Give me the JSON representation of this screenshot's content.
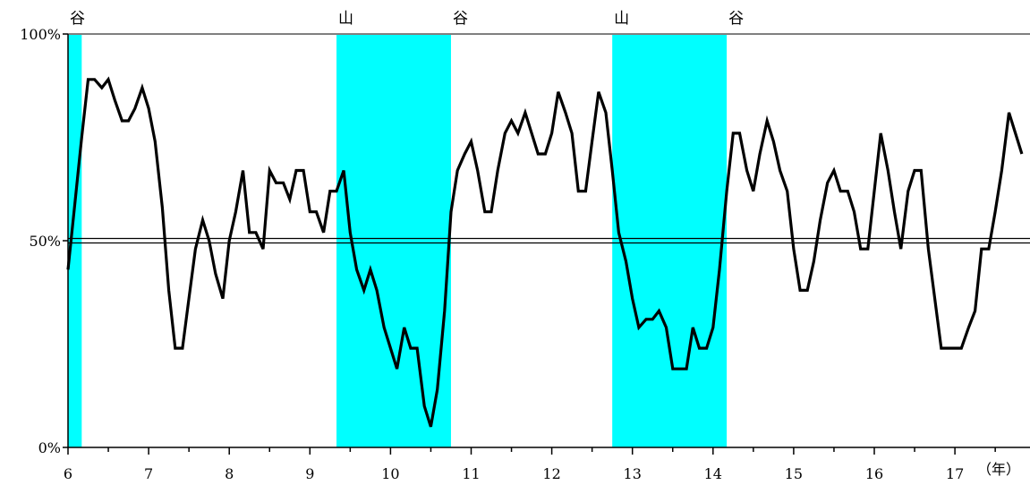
{
  "chart_data": {
    "type": "line",
    "title": "",
    "xlabel": "（年）",
    "ylabel": "",
    "xlim": [
      6,
      18
    ],
    "ylim": [
      0,
      100
    ],
    "yticks": [
      {
        "value": 0,
        "label": "0%"
      },
      {
        "value": 50,
        "label": "50%"
      },
      {
        "value": 100,
        "label": "100%"
      }
    ],
    "xticks": [
      {
        "value": 6,
        "label": "6"
      },
      {
        "value": 7,
        "label": "7"
      },
      {
        "value": 8,
        "label": "8"
      },
      {
        "value": 9,
        "label": "9"
      },
      {
        "value": 10,
        "label": "10"
      },
      {
        "value": 11,
        "label": "11"
      },
      {
        "value": 12,
        "label": "12"
      },
      {
        "value": 13,
        "label": "13"
      },
      {
        "value": 14,
        "label": "14"
      },
      {
        "value": 15,
        "label": "15"
      },
      {
        "value": 16,
        "label": "16"
      },
      {
        "value": 17,
        "label": "17"
      }
    ],
    "reference_line": 50,
    "shaded_periods": [
      {
        "start": 6.0,
        "end": 6.17
      },
      {
        "start": 9.33,
        "end": 10.75
      },
      {
        "start": 12.75,
        "end": 14.17
      }
    ],
    "phase_markers": [
      {
        "x": 6.0,
        "label": "谷"
      },
      {
        "x": 9.33,
        "label": "山"
      },
      {
        "x": 10.75,
        "label": "谷"
      },
      {
        "x": 12.75,
        "label": "山"
      },
      {
        "x": 14.17,
        "label": "谷"
      }
    ],
    "colors": {
      "shading": "#00ffff",
      "line": "#000000",
      "axis": "#000000",
      "top_border": "#808080"
    },
    "series": [
      {
        "values": [
          [
            6.0,
            43
          ],
          [
            6.08,
            58
          ],
          [
            6.17,
            75
          ],
          [
            6.25,
            89
          ],
          [
            6.33,
            89
          ],
          [
            6.42,
            87
          ],
          [
            6.5,
            89
          ],
          [
            6.58,
            84
          ],
          [
            6.67,
            79
          ],
          [
            6.75,
            79
          ],
          [
            6.83,
            82
          ],
          [
            6.92,
            87
          ],
          [
            7.0,
            82
          ],
          [
            7.08,
            74
          ],
          [
            7.17,
            58
          ],
          [
            7.25,
            38
          ],
          [
            7.33,
            24
          ],
          [
            7.42,
            24
          ],
          [
            7.5,
            36
          ],
          [
            7.58,
            48
          ],
          [
            7.67,
            55
          ],
          [
            7.75,
            50
          ],
          [
            7.83,
            42
          ],
          [
            7.92,
            36
          ],
          [
            8.0,
            50
          ],
          [
            8.08,
            57
          ],
          [
            8.17,
            67
          ],
          [
            8.25,
            52
          ],
          [
            8.33,
            52
          ],
          [
            8.42,
            48
          ],
          [
            8.5,
            67
          ],
          [
            8.58,
            64
          ],
          [
            8.67,
            64
          ],
          [
            8.75,
            60
          ],
          [
            8.83,
            67
          ],
          [
            8.92,
            67
          ],
          [
            9.0,
            57
          ],
          [
            9.08,
            57
          ],
          [
            9.17,
            52
          ],
          [
            9.25,
            62
          ],
          [
            9.33,
            62
          ],
          [
            9.42,
            67
          ],
          [
            9.5,
            52
          ],
          [
            9.58,
            43
          ],
          [
            9.67,
            38
          ],
          [
            9.75,
            43
          ],
          [
            9.83,
            38
          ],
          [
            9.92,
            29
          ],
          [
            10.0,
            24
          ],
          [
            10.08,
            19
          ],
          [
            10.17,
            29
          ],
          [
            10.25,
            24
          ],
          [
            10.33,
            24
          ],
          [
            10.42,
            10
          ],
          [
            10.5,
            5
          ],
          [
            10.58,
            14
          ],
          [
            10.67,
            33
          ],
          [
            10.75,
            57
          ],
          [
            10.83,
            67
          ],
          [
            10.92,
            71
          ],
          [
            11.0,
            74
          ],
          [
            11.08,
            67
          ],
          [
            11.17,
            57
          ],
          [
            11.25,
            57
          ],
          [
            11.33,
            67
          ],
          [
            11.42,
            76
          ],
          [
            11.5,
            79
          ],
          [
            11.58,
            76
          ],
          [
            11.67,
            81
          ],
          [
            11.75,
            76
          ],
          [
            11.83,
            71
          ],
          [
            11.92,
            71
          ],
          [
            12.0,
            76
          ],
          [
            12.08,
            86
          ],
          [
            12.17,
            81
          ],
          [
            12.25,
            76
          ],
          [
            12.33,
            62
          ],
          [
            12.42,
            62
          ],
          [
            12.5,
            74
          ],
          [
            12.58,
            86
          ],
          [
            12.67,
            81
          ],
          [
            12.75,
            67
          ],
          [
            12.83,
            52
          ],
          [
            12.92,
            45
          ],
          [
            13.0,
            36
          ],
          [
            13.08,
            29
          ],
          [
            13.17,
            31
          ],
          [
            13.25,
            31
          ],
          [
            13.33,
            33
          ],
          [
            13.42,
            29
          ],
          [
            13.5,
            19
          ],
          [
            13.58,
            19
          ],
          [
            13.67,
            19
          ],
          [
            13.75,
            29
          ],
          [
            13.83,
            24
          ],
          [
            13.92,
            24
          ],
          [
            14.0,
            29
          ],
          [
            14.08,
            43
          ],
          [
            14.17,
            62
          ],
          [
            14.25,
            76
          ],
          [
            14.33,
            76
          ],
          [
            14.42,
            67
          ],
          [
            14.5,
            62
          ],
          [
            14.58,
            71
          ],
          [
            14.67,
            79
          ],
          [
            14.75,
            74
          ],
          [
            14.83,
            67
          ],
          [
            14.92,
            62
          ],
          [
            15.0,
            48
          ],
          [
            15.08,
            38
          ],
          [
            15.17,
            38
          ],
          [
            15.25,
            45
          ],
          [
            15.33,
            55
          ],
          [
            15.42,
            64
          ],
          [
            15.5,
            67
          ],
          [
            15.58,
            62
          ],
          [
            15.67,
            62
          ],
          [
            15.75,
            57
          ],
          [
            15.83,
            48
          ],
          [
            15.92,
            48
          ],
          [
            16.0,
            62
          ],
          [
            16.08,
            76
          ],
          [
            16.17,
            67
          ],
          [
            16.25,
            57
          ],
          [
            16.33,
            48
          ],
          [
            16.42,
            62
          ],
          [
            16.5,
            67
          ],
          [
            16.58,
            67
          ],
          [
            16.67,
            48
          ],
          [
            16.75,
            36
          ],
          [
            16.83,
            24
          ],
          [
            16.92,
            24
          ],
          [
            17.0,
            24
          ],
          [
            17.08,
            24
          ],
          [
            17.17,
            29
          ],
          [
            17.25,
            33
          ],
          [
            17.33,
            48
          ],
          [
            17.42,
            48
          ],
          [
            17.5,
            57
          ],
          [
            17.58,
            67
          ],
          [
            17.67,
            81
          ],
          [
            17.75,
            76
          ],
          [
            17.83,
            71
          ]
        ]
      }
    ]
  }
}
